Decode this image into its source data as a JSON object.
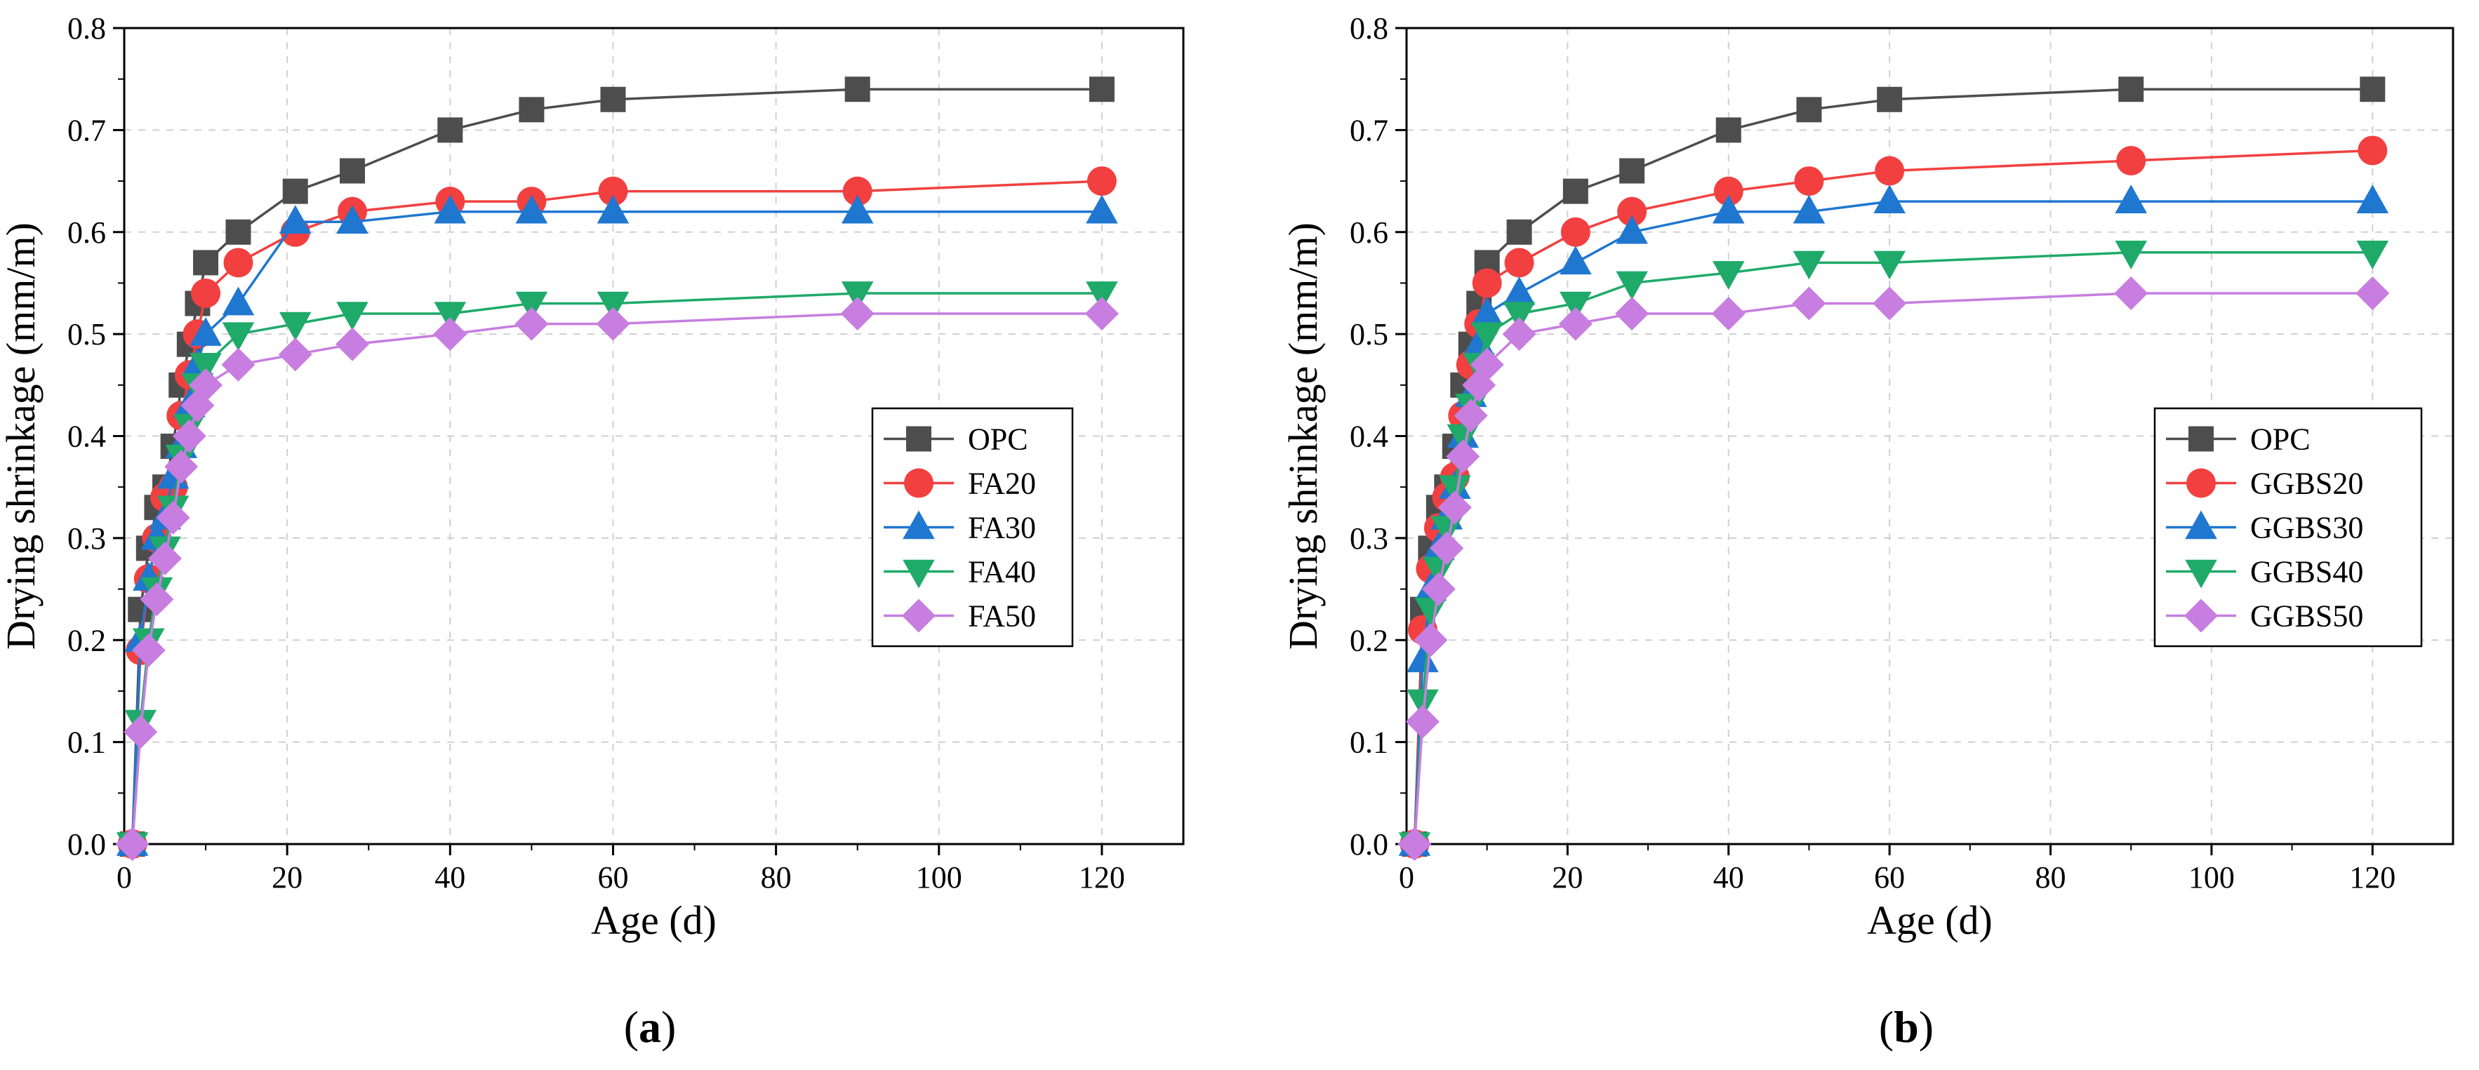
{
  "chart_data": [
    {
      "type": "line",
      "panel": "a",
      "caption_open": "(",
      "caption_letter": "a",
      "caption_close": ")",
      "xlabel": "Age (d)",
      "ylabel": "Drying shrinkage (mm/m)",
      "xlim": [
        0,
        130
      ],
      "ylim": [
        0,
        0.8
      ],
      "xticks": [
        0,
        20,
        40,
        60,
        80,
        100,
        120
      ],
      "yticks": [
        0.0,
        0.1,
        0.2,
        0.3,
        0.4,
        0.5,
        0.6,
        0.7,
        0.8
      ],
      "x": [
        1,
        2,
        3,
        4,
        5,
        6,
        7,
        8,
        9,
        10,
        14,
        21,
        28,
        40,
        50,
        60,
        90,
        120
      ],
      "legend_position": "center-right",
      "series": [
        {
          "name": "OPC",
          "marker": "square",
          "color": "#4d4d4d",
          "values": [
            0,
            0.23,
            0.29,
            0.33,
            0.35,
            0.39,
            0.45,
            0.49,
            0.53,
            0.57,
            0.6,
            0.64,
            0.66,
            0.7,
            0.72,
            0.73,
            0.74,
            0.74
          ]
        },
        {
          "name": "FA20",
          "marker": "circle",
          "color": "#f24040",
          "values": [
            0,
            0.19,
            0.26,
            0.3,
            0.34,
            0.35,
            0.42,
            0.46,
            0.5,
            0.54,
            0.57,
            0.6,
            0.62,
            0.63,
            0.63,
            0.64,
            0.64,
            0.65
          ]
        },
        {
          "name": "FA30",
          "marker": "triangle-up",
          "color": "#1f77d0",
          "values": [
            0,
            0.2,
            0.26,
            0.3,
            0.32,
            0.36,
            0.39,
            0.43,
            0.47,
            0.5,
            0.53,
            0.61,
            0.61,
            0.62,
            0.62,
            0.62,
            0.62,
            0.62
          ]
        },
        {
          "name": "FA40",
          "marker": "triangle-down",
          "color": "#1faa6a",
          "values": [
            0,
            0.12,
            0.2,
            0.25,
            0.29,
            0.33,
            0.38,
            0.41,
            0.45,
            0.47,
            0.5,
            0.51,
            0.52,
            0.52,
            0.53,
            0.53,
            0.54,
            0.54
          ]
        },
        {
          "name": "FA50",
          "marker": "diamond",
          "color": "#c77ee0",
          "values": [
            0,
            0.11,
            0.19,
            0.24,
            0.28,
            0.32,
            0.37,
            0.4,
            0.43,
            0.45,
            0.47,
            0.48,
            0.49,
            0.5,
            0.51,
            0.51,
            0.52,
            0.52
          ]
        }
      ]
    },
    {
      "type": "line",
      "panel": "b",
      "caption_open": "(",
      "caption_letter": "b",
      "caption_close": ")",
      "xlabel": "Age (d)",
      "ylabel": "Drying shrinkage (mm/m)",
      "xlim": [
        0,
        130
      ],
      "ylim": [
        0,
        0.8
      ],
      "xticks": [
        0,
        20,
        40,
        60,
        80,
        100,
        120
      ],
      "yticks": [
        0.0,
        0.1,
        0.2,
        0.3,
        0.4,
        0.5,
        0.6,
        0.7,
        0.8
      ],
      "x": [
        1,
        2,
        3,
        4,
        5,
        6,
        7,
        8,
        9,
        10,
        14,
        21,
        28,
        40,
        50,
        60,
        90,
        120
      ],
      "legend_position": "center-right",
      "series": [
        {
          "name": "OPC",
          "marker": "square",
          "color": "#4d4d4d",
          "values": [
            0,
            0.23,
            0.29,
            0.33,
            0.35,
            0.39,
            0.45,
            0.49,
            0.53,
            0.57,
            0.6,
            0.64,
            0.66,
            0.7,
            0.72,
            0.73,
            0.74,
            0.74
          ]
        },
        {
          "name": "GGBS20",
          "marker": "circle",
          "color": "#f24040",
          "values": [
            0,
            0.21,
            0.27,
            0.31,
            0.34,
            0.36,
            0.42,
            0.47,
            0.51,
            0.55,
            0.57,
            0.6,
            0.62,
            0.64,
            0.65,
            0.66,
            0.67,
            0.68
          ]
        },
        {
          "name": "GGBS30",
          "marker": "triangle-up",
          "color": "#1f77d0",
          "values": [
            0,
            0.18,
            0.25,
            0.29,
            0.32,
            0.35,
            0.4,
            0.44,
            0.49,
            0.52,
            0.54,
            0.57,
            0.6,
            0.62,
            0.62,
            0.63,
            0.63,
            0.63
          ]
        },
        {
          "name": "GGBS40",
          "marker": "triangle-down",
          "color": "#1faa6a",
          "values": [
            0,
            0.14,
            0.23,
            0.27,
            0.31,
            0.35,
            0.4,
            0.43,
            0.47,
            0.5,
            0.52,
            0.53,
            0.55,
            0.56,
            0.57,
            0.57,
            0.58,
            0.58
          ]
        },
        {
          "name": "GGBS50",
          "marker": "diamond",
          "color": "#c77ee0",
          "values": [
            0,
            0.12,
            0.2,
            0.25,
            0.29,
            0.33,
            0.38,
            0.42,
            0.45,
            0.47,
            0.5,
            0.51,
            0.52,
            0.52,
            0.53,
            0.53,
            0.54,
            0.54
          ]
        }
      ]
    }
  ]
}
